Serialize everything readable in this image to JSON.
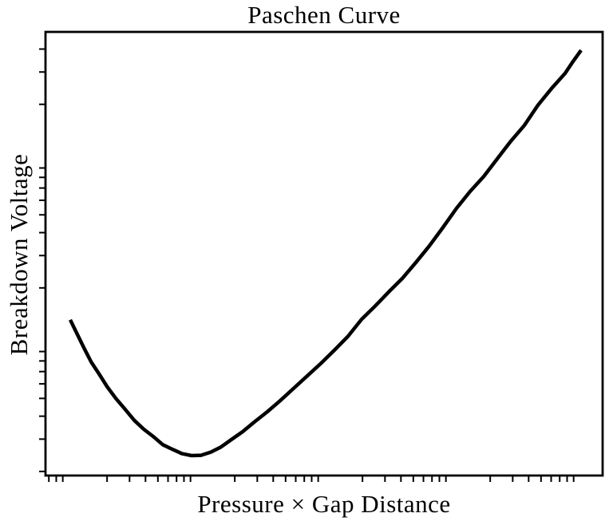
{
  "figure": {
    "title": "Paschen Curve",
    "xlabel": "Pressure × Gap Distance",
    "ylabel": "Breakdown Voltage",
    "background_color": "#ffffff",
    "axis_color": "#000000",
    "line_color": "#000000"
  },
  "chart_data": {
    "type": "line",
    "title": "Paschen Curve",
    "xlabel": "Pressure × Gap Distance",
    "ylabel": "Breakdown Voltage",
    "xscale": "log",
    "yscale": "log",
    "xlim": [
      0.659,
      15180
    ],
    "ylim": [
      0.19,
      49.6
    ],
    "grid": false,
    "legend": null,
    "tick_labels_visible": false,
    "ticks": {
      "x": "log minor ticks only (2-9 per decade), unlabeled, outward",
      "y": "log minor ticks only (2-9 per decade), unlabeled, outward"
    },
    "series": [
      {
        "name": "breakdown-voltage-curve",
        "color": "#000000",
        "line_width": 4.5,
        "x": [
          1.03,
          1.16,
          1.32,
          1.5,
          1.73,
          2.0,
          2.34,
          2.74,
          3.26,
          3.87,
          4.6,
          5.46,
          6.49,
          7.72,
          9.17,
          10.9,
          13.0,
          15.6,
          18.8,
          23.0,
          28.6,
          36.0,
          45.3,
          57.9,
          73.9,
          94.4,
          121,
          154,
          197,
          251,
          321,
          410,
          523,
          668,
          854,
          1090,
          1390,
          1780,
          2270,
          2900,
          3710,
          4730,
          6040,
          7720,
          8910,
          10300
        ],
        "y": [
          1.34,
          1.13,
          0.94,
          0.79,
          0.68,
          0.58,
          0.5,
          0.44,
          0.38,
          0.34,
          0.31,
          0.28,
          0.264,
          0.25,
          0.244,
          0.245,
          0.255,
          0.272,
          0.298,
          0.329,
          0.373,
          0.423,
          0.486,
          0.568,
          0.663,
          0.775,
          0.918,
          1.09,
          1.35,
          1.59,
          1.9,
          2.25,
          2.75,
          3.39,
          4.27,
          5.43,
          6.7,
          8.1,
          10.1,
          12.6,
          15.4,
          19.8,
          24.4,
          29.5,
          34.3,
          39.4
        ]
      }
    ],
    "annotations": [],
    "notes": "Log-log Paschen curve: breakdown voltage falls steeply, reaches a minimum, then rises roughly linearly in log-log space. Axis values are in arbitrary unlabeled units."
  }
}
